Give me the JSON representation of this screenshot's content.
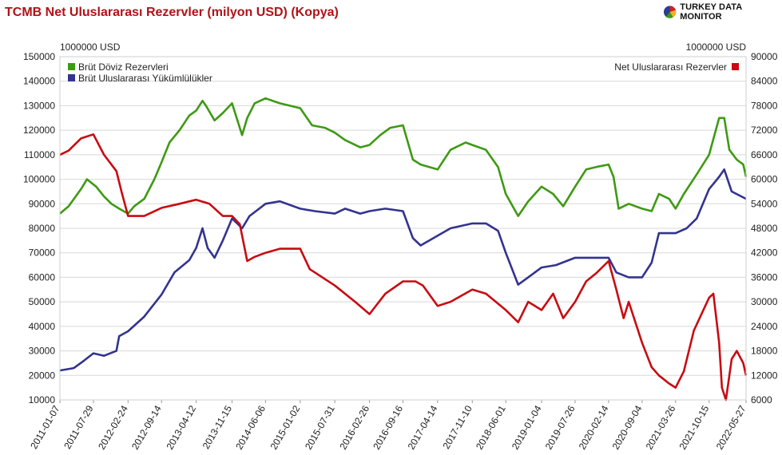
{
  "title": "TCMB Net Uluslararası Rezervler (milyon USD) (Kopya)",
  "logo": {
    "text": "TURKEY DATA MONITOR",
    "icon": "pie-logo-icon"
  },
  "chart_data": {
    "type": "line",
    "left_unit": "1000000 USD",
    "right_unit": "1000000 USD",
    "left_axis": {
      "min": 10000,
      "max": 150000,
      "step": 10000,
      "ticks": [
        "150000",
        "140000",
        "130000",
        "120000",
        "110000",
        "100000",
        "90000",
        "80000",
        "70000",
        "60000",
        "50000",
        "40000",
        "30000",
        "20000",
        "10000"
      ]
    },
    "right_axis": {
      "min": 6000,
      "max": 90000,
      "step": 6000,
      "ticks": [
        "90000",
        "84000",
        "78000",
        "72000",
        "66000",
        "60000",
        "54000",
        "48000",
        "42000",
        "36000",
        "30000",
        "24000",
        "18000",
        "12000",
        "6000"
      ]
    },
    "x_range": [
      "2011-01-07",
      "2022-05-27"
    ],
    "x_ticks": [
      "2011-01-07",
      "2011-07-29",
      "2012-02-24",
      "2012-09-14",
      "2013-04-12",
      "2013-11-15",
      "2014-06-06",
      "2015-01-02",
      "2015-07-31",
      "2016-02-26",
      "2016-09-16",
      "2017-04-14",
      "2017-11-10",
      "2018-06-01",
      "2019-01-04",
      "2019-07-26",
      "2020-02-14",
      "2020-09-04",
      "2021-03-26",
      "2021-10-15",
      "2022-05-27"
    ],
    "grid": true,
    "legend_left_placement": "top-left",
    "legend_right_placement": "top-right",
    "series": [
      {
        "name": "Brüt Döviz Rezervleri",
        "color": "#3d9a13",
        "axis": "left",
        "points": [
          [
            "2011-01-07",
            86000
          ],
          [
            "2011-03-01",
            89000
          ],
          [
            "2011-05-15",
            96000
          ],
          [
            "2011-06-20",
            100000
          ],
          [
            "2011-08-15",
            97000
          ],
          [
            "2011-10-01",
            93000
          ],
          [
            "2011-11-15",
            90000
          ],
          [
            "2012-01-01",
            88000
          ],
          [
            "2012-02-24",
            86000
          ],
          [
            "2012-04-01",
            89000
          ],
          [
            "2012-06-01",
            92000
          ],
          [
            "2012-08-01",
            100000
          ],
          [
            "2012-09-14",
            107000
          ],
          [
            "2012-11-01",
            115000
          ],
          [
            "2013-01-01",
            120000
          ],
          [
            "2013-03-01",
            126000
          ],
          [
            "2013-04-12",
            128000
          ],
          [
            "2013-05-20",
            132000
          ],
          [
            "2013-06-10",
            130000
          ],
          [
            "2013-08-01",
            124000
          ],
          [
            "2013-09-20",
            127000
          ],
          [
            "2013-11-15",
            131000
          ],
          [
            "2014-01-15",
            118000
          ],
          [
            "2014-02-15",
            125000
          ],
          [
            "2014-04-01",
            131000
          ],
          [
            "2014-06-06",
            133000
          ],
          [
            "2014-09-01",
            131000
          ],
          [
            "2015-01-02",
            129000
          ],
          [
            "2015-03-15",
            122000
          ],
          [
            "2015-06-01",
            121000
          ],
          [
            "2015-07-31",
            119000
          ],
          [
            "2015-10-01",
            116000
          ],
          [
            "2016-01-01",
            113000
          ],
          [
            "2016-02-26",
            114000
          ],
          [
            "2016-05-01",
            118000
          ],
          [
            "2016-07-01",
            121000
          ],
          [
            "2016-09-16",
            122000
          ],
          [
            "2016-11-15",
            108000
          ],
          [
            "2017-01-01",
            106000
          ],
          [
            "2017-04-14",
            104000
          ],
          [
            "2017-07-01",
            112000
          ],
          [
            "2017-10-01",
            115000
          ],
          [
            "2017-11-10",
            114000
          ],
          [
            "2018-02-01",
            112000
          ],
          [
            "2018-04-15",
            105000
          ],
          [
            "2018-06-01",
            94000
          ],
          [
            "2018-08-15",
            85000
          ],
          [
            "2018-10-15",
            91000
          ],
          [
            "2019-01-04",
            97000
          ],
          [
            "2019-03-15",
            94000
          ],
          [
            "2019-05-15",
            89000
          ],
          [
            "2019-07-26",
            97000
          ],
          [
            "2019-10-01",
            104000
          ],
          [
            "2019-12-01",
            105000
          ],
          [
            "2020-02-14",
            106000
          ],
          [
            "2020-03-15",
            101000
          ],
          [
            "2020-04-15",
            88000
          ],
          [
            "2020-06-15",
            90000
          ],
          [
            "2020-09-04",
            88000
          ],
          [
            "2020-11-01",
            87000
          ],
          [
            "2020-12-15",
            94000
          ],
          [
            "2021-02-15",
            92000
          ],
          [
            "2021-03-26",
            88000
          ],
          [
            "2021-05-15",
            94000
          ],
          [
            "2021-08-01",
            102000
          ],
          [
            "2021-10-15",
            110000
          ],
          [
            "2021-12-15",
            125000
          ],
          [
            "2022-01-15",
            125000
          ],
          [
            "2022-02-15",
            112000
          ],
          [
            "2022-04-01",
            108000
          ],
          [
            "2022-05-10",
            106000
          ],
          [
            "2022-05-27",
            101000
          ]
        ]
      },
      {
        "name": "Brüt Uluslararası Yükümlülükler",
        "color": "#33338f",
        "axis": "left",
        "points": [
          [
            "2011-01-07",
            22000
          ],
          [
            "2011-04-01",
            23000
          ],
          [
            "2011-06-01",
            26000
          ],
          [
            "2011-07-29",
            29000
          ],
          [
            "2011-10-01",
            28000
          ],
          [
            "2011-12-15",
            30000
          ],
          [
            "2012-01-01",
            36000
          ],
          [
            "2012-02-24",
            38000
          ],
          [
            "2012-06-01",
            44000
          ],
          [
            "2012-09-14",
            53000
          ],
          [
            "2012-12-01",
            62000
          ],
          [
            "2013-03-01",
            67000
          ],
          [
            "2013-04-12",
            72000
          ],
          [
            "2013-05-20",
            80000
          ],
          [
            "2013-06-20",
            72000
          ],
          [
            "2013-08-01",
            68000
          ],
          [
            "2013-09-20",
            75000
          ],
          [
            "2013-11-15",
            84000
          ],
          [
            "2014-01-15",
            80000
          ],
          [
            "2014-03-01",
            85000
          ],
          [
            "2014-06-06",
            90000
          ],
          [
            "2014-09-01",
            91000
          ],
          [
            "2015-01-02",
            88000
          ],
          [
            "2015-04-01",
            87000
          ],
          [
            "2015-07-31",
            86000
          ],
          [
            "2015-10-01",
            88000
          ],
          [
            "2016-01-01",
            86000
          ],
          [
            "2016-02-26",
            87000
          ],
          [
            "2016-06-01",
            88000
          ],
          [
            "2016-09-16",
            87000
          ],
          [
            "2016-11-15",
            76000
          ],
          [
            "2017-01-01",
            73000
          ],
          [
            "2017-04-14",
            77000
          ],
          [
            "2017-07-01",
            80000
          ],
          [
            "2017-11-10",
            82000
          ],
          [
            "2018-02-01",
            82000
          ],
          [
            "2018-04-15",
            79000
          ],
          [
            "2018-06-01",
            70000
          ],
          [
            "2018-08-15",
            57000
          ],
          [
            "2018-10-15",
            60000
          ],
          [
            "2019-01-04",
            64000
          ],
          [
            "2019-04-01",
            65000
          ],
          [
            "2019-07-26",
            68000
          ],
          [
            "2019-10-01",
            68000
          ],
          [
            "2020-02-14",
            68000
          ],
          [
            "2020-04-01",
            62000
          ],
          [
            "2020-06-15",
            60000
          ],
          [
            "2020-09-04",
            60000
          ],
          [
            "2020-11-01",
            66000
          ],
          [
            "2020-12-15",
            78000
          ],
          [
            "2021-03-26",
            78000
          ],
          [
            "2021-06-01",
            80000
          ],
          [
            "2021-08-01",
            84000
          ],
          [
            "2021-10-15",
            96000
          ],
          [
            "2021-12-15",
            101000
          ],
          [
            "2022-01-15",
            104000
          ],
          [
            "2022-03-01",
            95000
          ],
          [
            "2022-05-27",
            92000
          ]
        ]
      },
      {
        "name": "Net Uluslararası Rezervler",
        "color": "#c80b12",
        "axis": "right",
        "points": [
          [
            "2011-01-07",
            66000
          ],
          [
            "2011-03-01",
            67000
          ],
          [
            "2011-05-15",
            70000
          ],
          [
            "2011-07-29",
            71000
          ],
          [
            "2011-10-01",
            66000
          ],
          [
            "2011-12-15",
            62000
          ],
          [
            "2012-01-15",
            57000
          ],
          [
            "2012-02-24",
            51000
          ],
          [
            "2012-06-01",
            51000
          ],
          [
            "2012-09-14",
            53000
          ],
          [
            "2013-01-01",
            54000
          ],
          [
            "2013-04-12",
            55000
          ],
          [
            "2013-07-01",
            54000
          ],
          [
            "2013-09-20",
            51000
          ],
          [
            "2013-11-15",
            51000
          ],
          [
            "2014-01-01",
            49000
          ],
          [
            "2014-02-15",
            40000
          ],
          [
            "2014-04-01",
            41000
          ],
          [
            "2014-06-06",
            42000
          ],
          [
            "2014-09-01",
            43000
          ],
          [
            "2015-01-02",
            43000
          ],
          [
            "2015-03-01",
            38000
          ],
          [
            "2015-07-31",
            34000
          ],
          [
            "2015-12-01",
            30000
          ],
          [
            "2016-02-26",
            27000
          ],
          [
            "2016-06-01",
            32000
          ],
          [
            "2016-09-16",
            35000
          ],
          [
            "2016-12-01",
            35000
          ],
          [
            "2017-01-15",
            34000
          ],
          [
            "2017-04-14",
            29000
          ],
          [
            "2017-07-01",
            30000
          ],
          [
            "2017-11-10",
            33000
          ],
          [
            "2018-02-01",
            32000
          ],
          [
            "2018-06-01",
            28000
          ],
          [
            "2018-08-15",
            25000
          ],
          [
            "2018-10-15",
            30000
          ],
          [
            "2019-01-04",
            28000
          ],
          [
            "2019-03-15",
            32000
          ],
          [
            "2019-05-15",
            26000
          ],
          [
            "2019-07-26",
            30000
          ],
          [
            "2019-10-01",
            35000
          ],
          [
            "2019-12-01",
            37000
          ],
          [
            "2020-02-14",
            40000
          ],
          [
            "2020-04-01",
            33000
          ],
          [
            "2020-05-15",
            26000
          ],
          [
            "2020-06-15",
            30000
          ],
          [
            "2020-09-04",
            20000
          ],
          [
            "2020-11-01",
            14000
          ],
          [
            "2020-12-15",
            12000
          ],
          [
            "2021-02-15",
            10000
          ],
          [
            "2021-03-26",
            9000
          ],
          [
            "2021-05-15",
            13000
          ],
          [
            "2021-07-15",
            23000
          ],
          [
            "2021-10-15",
            31000
          ],
          [
            "2021-11-10",
            32000
          ],
          [
            "2021-12-15",
            20000
          ],
          [
            "2022-01-01",
            9000
          ],
          [
            "2022-01-25",
            6000
          ],
          [
            "2022-03-01",
            16000
          ],
          [
            "2022-04-01",
            18000
          ],
          [
            "2022-05-10",
            15000
          ],
          [
            "2022-05-27",
            12000
          ]
        ]
      }
    ]
  }
}
